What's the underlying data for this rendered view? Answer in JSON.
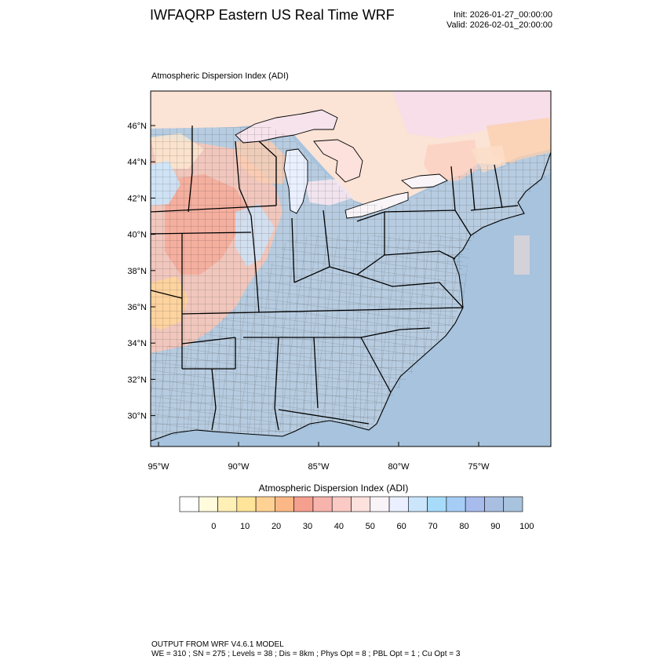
{
  "header": {
    "title": "IWFAQRP Eastern US Real Time WRF",
    "init": "Init: 2026-01-27_00:00:00",
    "valid": "Valid: 2026-02-01_20:00:00"
  },
  "map": {
    "field_title": "Atmospheric Dispersion Index   (ADI)",
    "lat_labels": [
      "46°N",
      "44°N",
      "42°N",
      "40°N",
      "38°N",
      "36°N",
      "34°N",
      "32°N",
      "30°N"
    ],
    "lon_labels": [
      "95°W",
      "90°W",
      "85°W",
      "80°W",
      "75°W"
    ],
    "colors": {
      "water": "#a7c3dd",
      "land_default": "#b7cce0"
    }
  },
  "colorbar": {
    "title": "Atmospheric Dispersion Index  (ADI)",
    "colors": [
      "#ffffff",
      "#fffbdc",
      "#fff0b6",
      "#ffe49a",
      "#ffd293",
      "#fbb886",
      "#f59f8f",
      "#f7b4ad",
      "#fbcac4",
      "#fde1dc",
      "#f9f4f8",
      "#eaf0ff",
      "#cbe5fb",
      "#a6dcfa",
      "#a6cdf6",
      "#a7bbed",
      "#a9bfe2",
      "#a7c3dd"
    ],
    "tick_labels": [
      "0",
      "10",
      "20",
      "30",
      "40",
      "50",
      "60",
      "70",
      "80",
      "90",
      "100"
    ]
  },
  "footer": {
    "line1": "OUTPUT FROM WRF V4.6.1 MODEL",
    "line2": "WE = 310 ; SN = 275 ; Levels = 38 ; Dis = 8km ; Phys Opt = 8 ; PBL Opt = 1 ; Cu Opt = 3"
  }
}
